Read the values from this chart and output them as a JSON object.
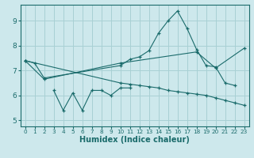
{
  "xlabel": "Humidex (Indice chaleur)",
  "background_color": "#cde8ec",
  "grid_color": "#a8d0d4",
  "line_color": "#1a6b6b",
  "xlim": [
    -0.5,
    23.5
  ],
  "ylim": [
    4.75,
    9.65
  ],
  "yticks": [
    5,
    6,
    7,
    8,
    9
  ],
  "xticks": [
    0,
    1,
    2,
    3,
    4,
    5,
    6,
    7,
    8,
    9,
    10,
    11,
    12,
    13,
    14,
    15,
    16,
    17,
    18,
    19,
    20,
    21,
    22,
    23
  ],
  "line1_x": [
    0,
    1,
    2,
    10,
    11,
    12,
    13,
    14,
    15,
    16,
    17,
    18,
    19,
    20,
    21,
    22
  ],
  "line1_y": [
    7.4,
    7.3,
    6.7,
    7.2,
    7.45,
    7.55,
    7.8,
    8.5,
    9.0,
    9.4,
    8.7,
    7.85,
    7.2,
    7.15,
    6.5,
    6.4
  ],
  "line2_x": [
    3,
    4,
    5,
    6,
    7,
    8,
    9,
    10,
    11
  ],
  "line2_y": [
    6.2,
    5.4,
    6.1,
    5.4,
    6.2,
    6.2,
    6.0,
    6.3,
    6.3
  ],
  "line3_x": [
    0,
    10,
    11,
    12,
    13,
    14,
    15,
    16,
    17,
    18,
    19,
    20,
    21,
    22,
    23
  ],
  "line3_y": [
    7.4,
    6.5,
    6.45,
    6.4,
    6.35,
    6.3,
    6.2,
    6.15,
    6.1,
    6.05,
    6.0,
    5.9,
    5.8,
    5.7,
    5.6
  ],
  "line4_x": [
    0,
    2,
    10,
    18,
    20,
    23
  ],
  "line4_y": [
    7.4,
    6.65,
    7.3,
    7.75,
    7.1,
    7.9
  ]
}
